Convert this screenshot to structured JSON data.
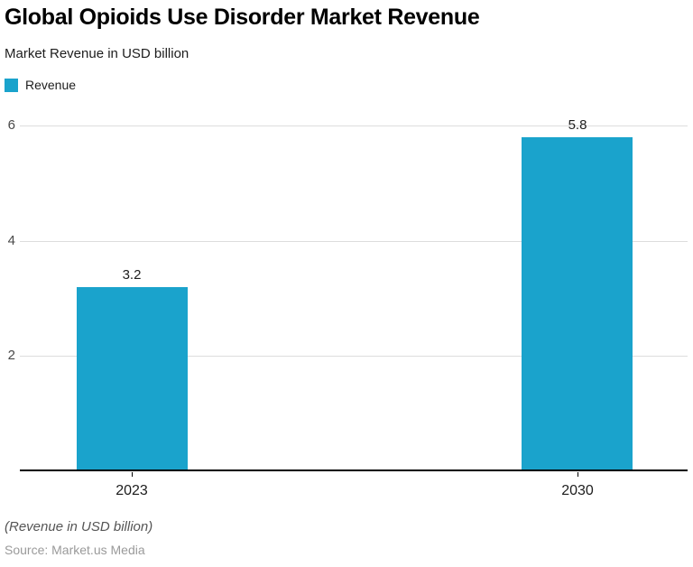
{
  "header": {
    "title": "Global Opioids Use Disorder Market Revenue",
    "subtitle": "Market Revenue in USD billion"
  },
  "legend": {
    "items": [
      {
        "label": "Revenue",
        "color": "#1AA3CC"
      }
    ]
  },
  "chart_data": {
    "type": "bar",
    "title": "Global Opioids Use Disorder Market Revenue",
    "subtitle": "Market Revenue in USD billion",
    "categories": [
      "2023",
      "2030"
    ],
    "series": [
      {
        "name": "Revenue",
        "values": [
          3.2,
          5.8
        ]
      }
    ],
    "value_labels": [
      "3.2",
      "5.8"
    ],
    "xlabel": "",
    "ylabel": "",
    "ylim": [
      0,
      6.5
    ],
    "yticks": [
      2,
      4,
      6
    ],
    "grid": true,
    "legend_position": "top-left",
    "colors": {
      "bar": "#1AA3CC",
      "gridline": "#dddddd",
      "axis": "#000000"
    }
  },
  "footer": {
    "note": "(Revenue in USD billion)",
    "source": "Source: Market.us Media"
  }
}
